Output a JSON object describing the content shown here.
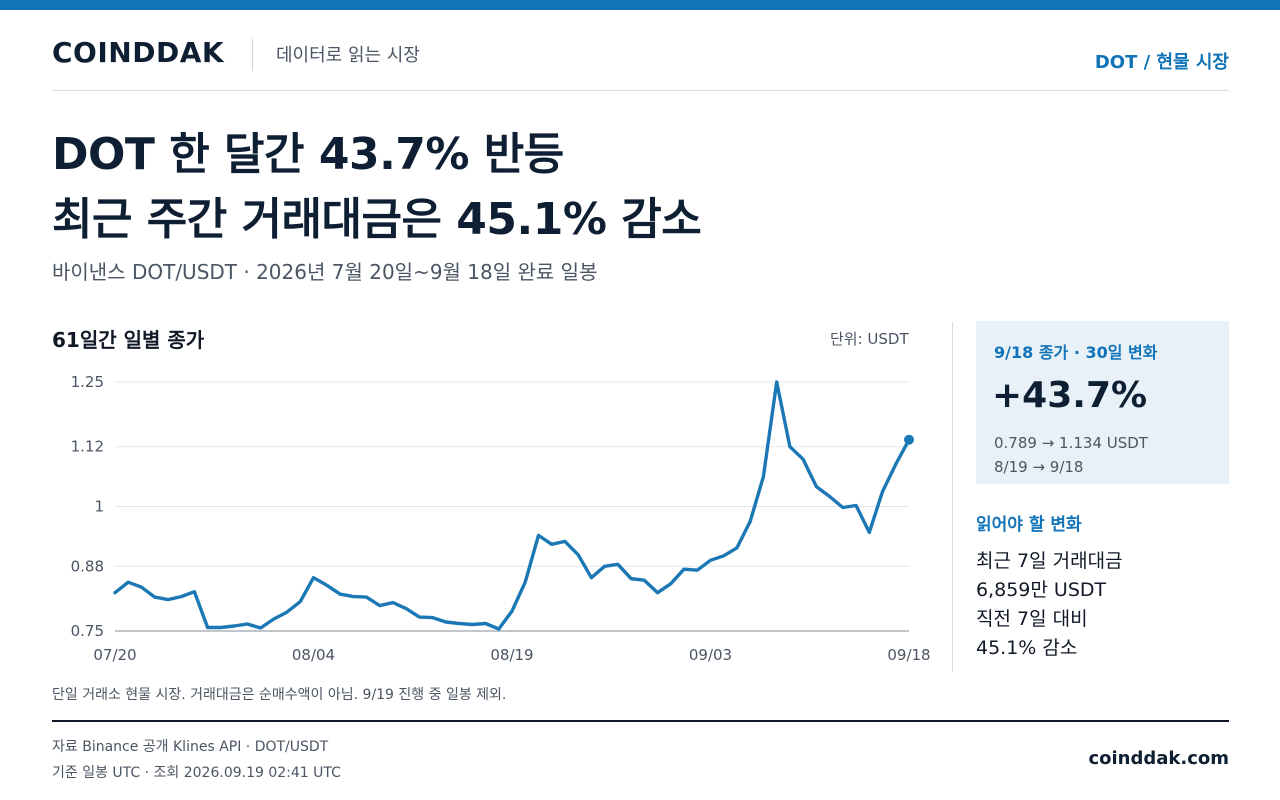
{
  "header": {
    "logo": "COINDDAK",
    "tagline": "데이터로 읽는 시장",
    "market_tag": "DOT / 현물 시장"
  },
  "headline": {
    "line1": "DOT 한 달간 43.7% 반등",
    "line2": "최근 주간 거래대금은 45.1% 감소"
  },
  "subtitle": "바이낸스 DOT/USDT · 2026년 7월 20일~9월 18일 완료 일봉",
  "chart_panel": {
    "title": "61일간 일별 종가",
    "unit": "단위: USDT"
  },
  "chart_data": {
    "type": "line",
    "title": "61일간 일별 종가",
    "unit": "USDT",
    "x_ticks": [
      "07/20",
      "08/04",
      "08/19",
      "09/03",
      "09/18"
    ],
    "y_ticks": [
      0.75,
      0.88,
      1,
      1.12,
      1.25
    ],
    "y_tick_labels": [
      "0.75",
      "0.88",
      "1",
      "1.12",
      "1.25"
    ],
    "ylim": [
      0.75,
      1.25
    ],
    "grid": "horizontal",
    "color": "#1b78b5",
    "series": [
      {
        "x": [
          "07/20",
          "07/21",
          "07/22",
          "07/23",
          "07/24",
          "07/25",
          "07/26",
          "07/27",
          "07/28",
          "07/29",
          "07/30",
          "07/31",
          "08/01",
          "08/02",
          "08/03",
          "08/04",
          "08/05",
          "08/06",
          "08/07",
          "08/08",
          "08/09",
          "08/10",
          "08/11",
          "08/12",
          "08/13",
          "08/14",
          "08/15",
          "08/16",
          "08/17",
          "08/18",
          "08/19",
          "08/20",
          "08/21",
          "08/22",
          "08/23",
          "08/24",
          "08/25",
          "08/26",
          "08/27",
          "08/28",
          "08/29",
          "08/30",
          "08/31",
          "09/01",
          "09/02",
          "09/03",
          "09/04",
          "09/05",
          "09/06",
          "09/07",
          "09/08",
          "09/09",
          "09/10",
          "09/11",
          "09/12",
          "09/13",
          "09/14",
          "09/15",
          "09/16",
          "09/17",
          "09/18"
        ],
        "values": [
          0.827,
          0.848,
          0.838,
          0.818,
          0.813,
          0.819,
          0.829,
          0.757,
          0.757,
          0.76,
          0.764,
          0.756,
          0.774,
          0.788,
          0.809,
          0.857,
          0.842,
          0.824,
          0.819,
          0.818,
          0.801,
          0.807,
          0.795,
          0.778,
          0.777,
          0.768,
          0.765,
          0.763,
          0.765,
          0.754,
          0.79,
          0.848,
          0.942,
          0.924,
          0.93,
          0.903,
          0.857,
          0.88,
          0.884,
          0.855,
          0.852,
          0.827,
          0.845,
          0.874,
          0.872,
          0.892,
          0.901,
          0.917,
          0.97,
          1.06,
          1.25,
          1.12,
          1.095,
          1.04,
          1.02,
          0.998,
          1.002,
          0.948,
          1.03,
          1.085,
          1.134
        ]
      }
    ],
    "last_point": {
      "x": "09/18",
      "value": 1.134
    }
  },
  "kpi": {
    "label": "9/18 종가 · 30일 변화",
    "value": "+43.7%",
    "detail1": "0.789 → 1.134 USDT",
    "detail2": "8/19 → 9/18"
  },
  "read": {
    "title": "읽어야 할 변화",
    "line1": "최근 7일 거래대금",
    "line2": "6,859만 USDT",
    "line3": "직전 7일 대비",
    "line4": "45.1% 감소"
  },
  "note": "단일 거래소 현물 시장. 거래대금은 순매수액이 아님. 9/19 진행 중 일봉 제외.",
  "footer": {
    "source": "자료  Binance 공개 Klines API · DOT/USDT",
    "basis": "기준  일봉 UTC · 조회 2026.09.19 02:41 UTC",
    "site": "coinddak.com"
  }
}
